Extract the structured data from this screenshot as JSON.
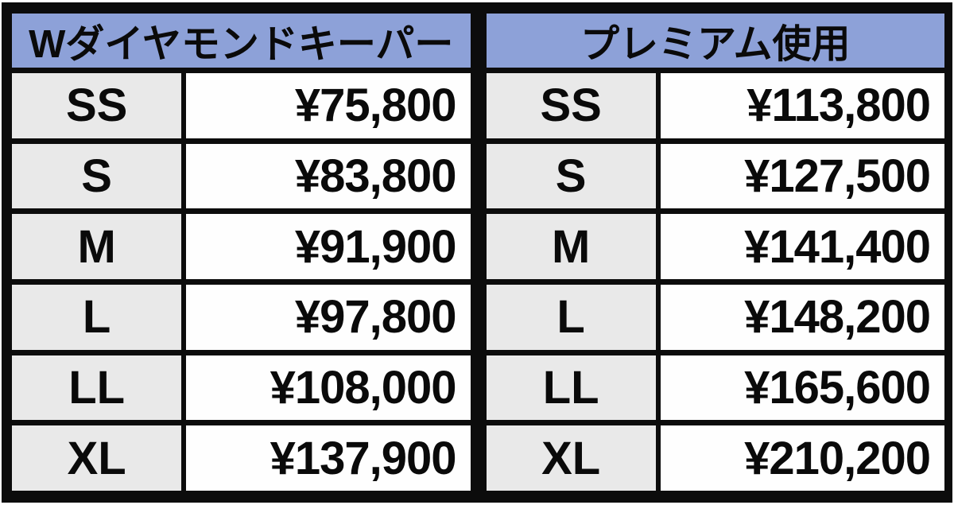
{
  "tables": [
    {
      "id": "w-diamond-keeper",
      "header": "Wダイヤモンドキーパー",
      "rows": [
        {
          "size": "SS",
          "price": "¥75,800"
        },
        {
          "size": "S",
          "price": "¥83,800"
        },
        {
          "size": "M",
          "price": "¥91,900"
        },
        {
          "size": "L",
          "price": "¥97,800"
        },
        {
          "size": "LL",
          "price": "¥108,000"
        },
        {
          "size": "XL",
          "price": "¥137,900"
        }
      ]
    },
    {
      "id": "premium",
      "header": "プレミアム使用",
      "rows": [
        {
          "size": "SS",
          "price": "¥113,800"
        },
        {
          "size": "S",
          "price": "¥127,500"
        },
        {
          "size": "M",
          "price": "¥141,400"
        },
        {
          "size": "L",
          "price": "¥148,200"
        },
        {
          "size": "LL",
          "price": "¥165,600"
        },
        {
          "size": "XL",
          "price": "¥210,200"
        }
      ]
    }
  ],
  "colors": {
    "header_bg": "#8da1d8",
    "size_bg": "#e9e9e9",
    "price_bg": "#fefefe",
    "border": "#0c0c0c",
    "text": "#0a0a0a"
  },
  "chart_data": {
    "type": "table",
    "tables": [
      {
        "title": "Wダイヤモンドキーパー",
        "columns": [
          "size",
          "price_jpy"
        ],
        "rows": [
          [
            "SS",
            75800
          ],
          [
            "S",
            83800
          ],
          [
            "M",
            91900
          ],
          [
            "L",
            97800
          ],
          [
            "LL",
            108000
          ],
          [
            "XL",
            137900
          ]
        ]
      },
      {
        "title": "プレミアム使用",
        "columns": [
          "size",
          "price_jpy"
        ],
        "rows": [
          [
            "SS",
            113800
          ],
          [
            "S",
            127500
          ],
          [
            "M",
            141400
          ],
          [
            "L",
            148200
          ],
          [
            "LL",
            165600
          ],
          [
            "XL",
            210200
          ]
        ]
      }
    ]
  }
}
